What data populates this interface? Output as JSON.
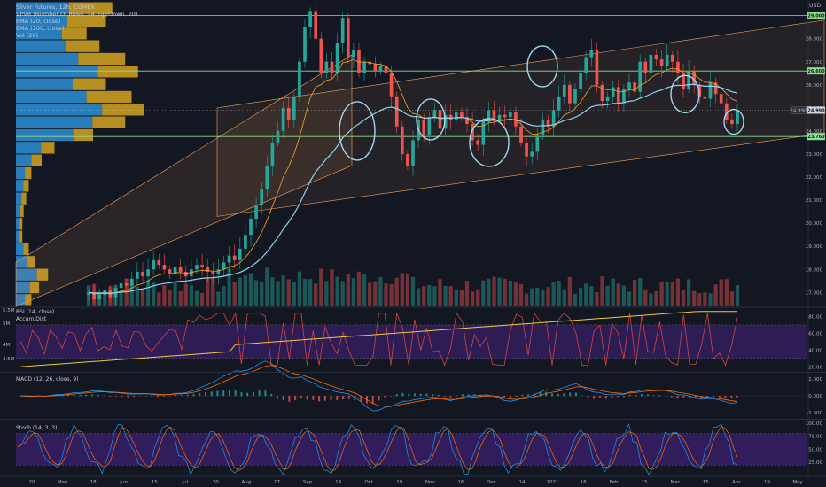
{
  "legend": {
    "title": "Silver Futures, 12h, COMEX",
    "vpvr": "VPVR (Number Of Rows, 24, Up/Down, 70)",
    "ema20": "EMA (20, close)",
    "ema100": "EMA (100, close)",
    "vol": "Vol (20)"
  },
  "currency": "USD",
  "price_tag": "24.990",
  "price_tag_left": "24.990",
  "panes": {
    "rsi": "RSI (14, close)",
    "accum": "Accum/Dist",
    "macd": "MACD (12, 26, close, 9)",
    "stoch": "Stoch (14, 3, 3)"
  },
  "colors": {
    "background": "#131722",
    "up": "#26a69a",
    "down": "#ef5350",
    "ema20": "#f5a623",
    "ema100": "#8fd3f4",
    "level": "#8be08b",
    "channel": "#f5a05a",
    "vpvr_up": "#2f8fd6",
    "vpvr_down": "#d4a520",
    "rsi": "#d2473f",
    "accum": "#f2c744",
    "indicator_band": "#3a1f6b",
    "circle": "#9fd8f0"
  },
  "chart_data": [
    {
      "type": "candlestick",
      "title": "Silver Futures, 12h, COMEX",
      "y_ticks": [
        "28.000",
        "27.000",
        "26.000",
        "25.000",
        "24.000",
        "23.000",
        "22.000",
        "21.000",
        "20.000",
        "19.000",
        "18.000",
        "17.000"
      ],
      "ylim": [
        16.4,
        29.6
      ],
      "x_ticks": [
        "20",
        "May",
        "18",
        "Jun",
        "15",
        "Jul",
        "20",
        "Aug",
        "17",
        "Sep",
        "14",
        "Oct",
        "19",
        "Nov",
        "16",
        "Dec",
        "14",
        "2021",
        "18",
        "Feb",
        "15",
        "Mar",
        "15",
        "Apr",
        "19",
        "May"
      ],
      "horizontal_levels": [
        {
          "label": "29.000",
          "value": 29.0
        },
        {
          "label": "26.600",
          "value": 26.6
        },
        {
          "label": "23.760",
          "value": 23.76
        }
      ],
      "closes": [
        17.0,
        16.7,
        16.9,
        17.1,
        16.8,
        17.2,
        17.4,
        17.3,
        17.6,
        17.9,
        17.7,
        18.0,
        18.4,
        18.2,
        18.0,
        17.8,
        18.1,
        17.9,
        17.7,
        18.0,
        18.2,
        18.1,
        17.9,
        17.8,
        18.0,
        18.3,
        18.6,
        18.4,
        18.9,
        19.5,
        20.2,
        20.8,
        21.5,
        22.5,
        23.5,
        24.0,
        25.0,
        24.5,
        25.5,
        27.0,
        28.5,
        29.2,
        28.0,
        26.5,
        27.0,
        26.5,
        27.8,
        28.9,
        27.2,
        27.5,
        26.5,
        27.0,
        26.9,
        26.6,
        26.8,
        26.5,
        25.5,
        24.2,
        23.0,
        22.5,
        23.6,
        24.5,
        23.8,
        24.6,
        24.9,
        24.1,
        24.7,
        24.5,
        24.8,
        24.6,
        24.3,
        23.6,
        23.4,
        24.4,
        24.9,
        24.5,
        24.7,
        24.6,
        24.8,
        24.2,
        23.5,
        22.9,
        23.1,
        23.8,
        24.5,
        24.2,
        24.9,
        25.5,
        26.0,
        25.2,
        25.8,
        26.5,
        27.2,
        27.5,
        26.0,
        25.3,
        25.5,
        25.9,
        25.2,
        25.8,
        26.1,
        25.7,
        27.0,
        26.5,
        27.3,
        27.1,
        26.8,
        27.3,
        27.0,
        26.5,
        25.8,
        26.6,
        26.0,
        25.5,
        25.4,
        26.1,
        25.6,
        25.2,
        24.5,
        24.3,
        24.9
      ],
      "volume_ylim": [
        0,
        1
      ],
      "ema20_ref": "orange trailing line",
      "ema100_ref": "cyan smooth line"
    },
    {
      "type": "line",
      "title": "RSI (14, close)",
      "y_ticks": [
        "80.00",
        "60.00",
        "40.00",
        "20.00"
      ],
      "ylim": [
        15,
        90
      ],
      "band": [
        30,
        70
      ],
      "left_ticks": [
        "5.5M",
        "5M",
        "4M",
        "3.5M"
      ]
    },
    {
      "type": "line",
      "title": "MACD (12, 26, close, 9)",
      "y_ticks": [
        "1.000",
        "0.000",
        "-1.000"
      ],
      "ylim": [
        -1.3,
        1.3
      ]
    },
    {
      "type": "line",
      "title": "Stoch (14, 3, 3)",
      "y_ticks": [
        "100.00",
        "75.00",
        "50.00",
        "25.00"
      ],
      "ylim": [
        0,
        105
      ],
      "band": [
        20,
        80
      ]
    }
  ]
}
